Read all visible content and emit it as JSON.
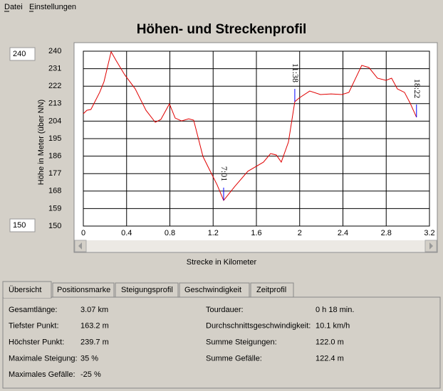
{
  "menu": [
    "Datei",
    "Einstellungen"
  ],
  "range_inputs": {
    "max": "240",
    "min": "150"
  },
  "chart_data": {
    "type": "line",
    "title": "Höhen- und Streckenprofil",
    "x_label": "Strecke in Kilometer",
    "y_label": "Höhe in Meter (über NN)",
    "x": [
      0,
      0.033,
      0.07,
      0.151,
      0.191,
      0.257,
      0.303,
      0.382,
      0.48,
      0.579,
      0.665,
      0.717,
      0.796,
      0.849,
      0.908,
      0.974,
      1.02,
      1.106,
      1.171,
      1.237,
      1.297,
      1.402,
      1.521,
      1.665,
      1.731,
      1.784,
      1.83,
      1.896,
      1.955,
      1.995,
      2.093,
      2.192,
      2.291,
      2.39,
      2.455,
      2.574,
      2.64,
      2.719,
      2.798,
      2.85,
      2.903,
      2.969,
      3.021,
      3.08
    ],
    "values": [
      207.8,
      209.6,
      210,
      218.8,
      224.3,
      239.7,
      235.2,
      227.9,
      220.6,
      209.6,
      203.4,
      204.9,
      212.9,
      205.6,
      204.1,
      205.2,
      204.5,
      185.8,
      178.5,
      171.2,
      163.2,
      170.5,
      178.2,
      182.9,
      187.3,
      186.6,
      182.9,
      193.2,
      214,
      215.9,
      219.5,
      217.7,
      218,
      217.7,
      218.8,
      232.7,
      231.6,
      226.1,
      225,
      226.1,
      220.6,
      218.8,
      213.3,
      206
    ],
    "color": "#e00000",
    "xlim": [
      0,
      3.2
    ],
    "xticks": [
      0,
      0.4,
      0.8,
      1.2,
      1.6,
      2,
      2.4,
      2.8,
      3.2
    ],
    "ylim": [
      150,
      240
    ],
    "yticks": [
      150,
      159,
      168,
      177,
      186,
      195,
      204,
      213,
      222,
      231,
      240
    ],
    "grid": true,
    "annotations": [
      {
        "x": 1.297,
        "y": 163.2,
        "label": "7:01",
        "color": "#0000ff"
      },
      {
        "x": 1.955,
        "y": 214,
        "label": "11:38",
        "color": "#0000ff"
      },
      {
        "x": 3.08,
        "y": 206,
        "label": "18:22",
        "color": "#0000ff"
      }
    ]
  },
  "tabs": [
    "Übersicht",
    "Positionsmarke",
    "Steigungsprofil",
    "Geschwindigkeit",
    "Zeitprofil"
  ],
  "summary": {
    "left": [
      {
        "label": "Gesamtlänge:",
        "value": "3.07 km"
      },
      {
        "label": "Tiefster Punkt:",
        "value": "163.2 m"
      },
      {
        "label": "Höchster Punkt:",
        "value": "239.7 m"
      },
      {
        "label": "Maximale Steigung:",
        "value": "35 %"
      },
      {
        "label": "Maximales Gefälle:",
        "value": "-25 %"
      }
    ],
    "right": [
      {
        "label": "Tourdauer:",
        "value": "0 h 18 min."
      },
      {
        "label": "Durchschnittsgeschwindigkeit:",
        "value": "10.1 km/h"
      },
      {
        "label": "Summe Steigungen:",
        "value": "122.0 m"
      },
      {
        "label": "Summe Gefälle:",
        "value": "122.4 m"
      }
    ]
  }
}
